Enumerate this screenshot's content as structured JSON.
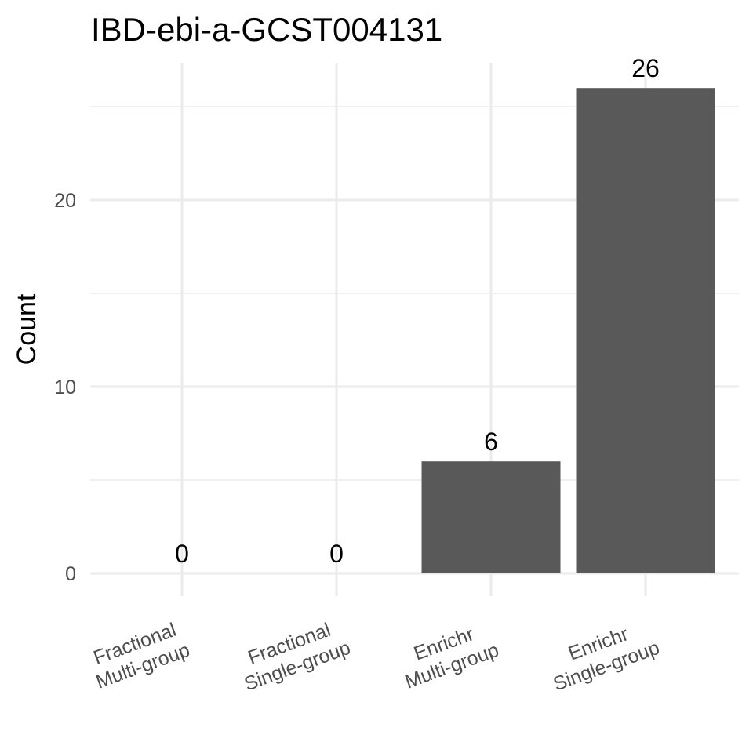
{
  "chart_data": {
    "type": "bar",
    "title": "IBD-ebi-a-GCST004131",
    "xlabel": "",
    "ylabel": "Count",
    "categories": [
      [
        "Fractional",
        "Multi-group"
      ],
      [
        "Fractional",
        "Single-group"
      ],
      [
        "Enrichr",
        "Multi-group"
      ],
      [
        "Enrichr",
        "Single-group"
      ]
    ],
    "values": [
      0,
      0,
      6,
      26
    ],
    "data_labels": [
      "0",
      "0",
      "6",
      "26"
    ],
    "yticks": [
      0,
      10,
      20
    ],
    "ytick_labels": [
      "0",
      "10",
      "20"
    ],
    "ylim": [
      0,
      27.3
    ],
    "grid": true,
    "bar_color": "#595959"
  }
}
